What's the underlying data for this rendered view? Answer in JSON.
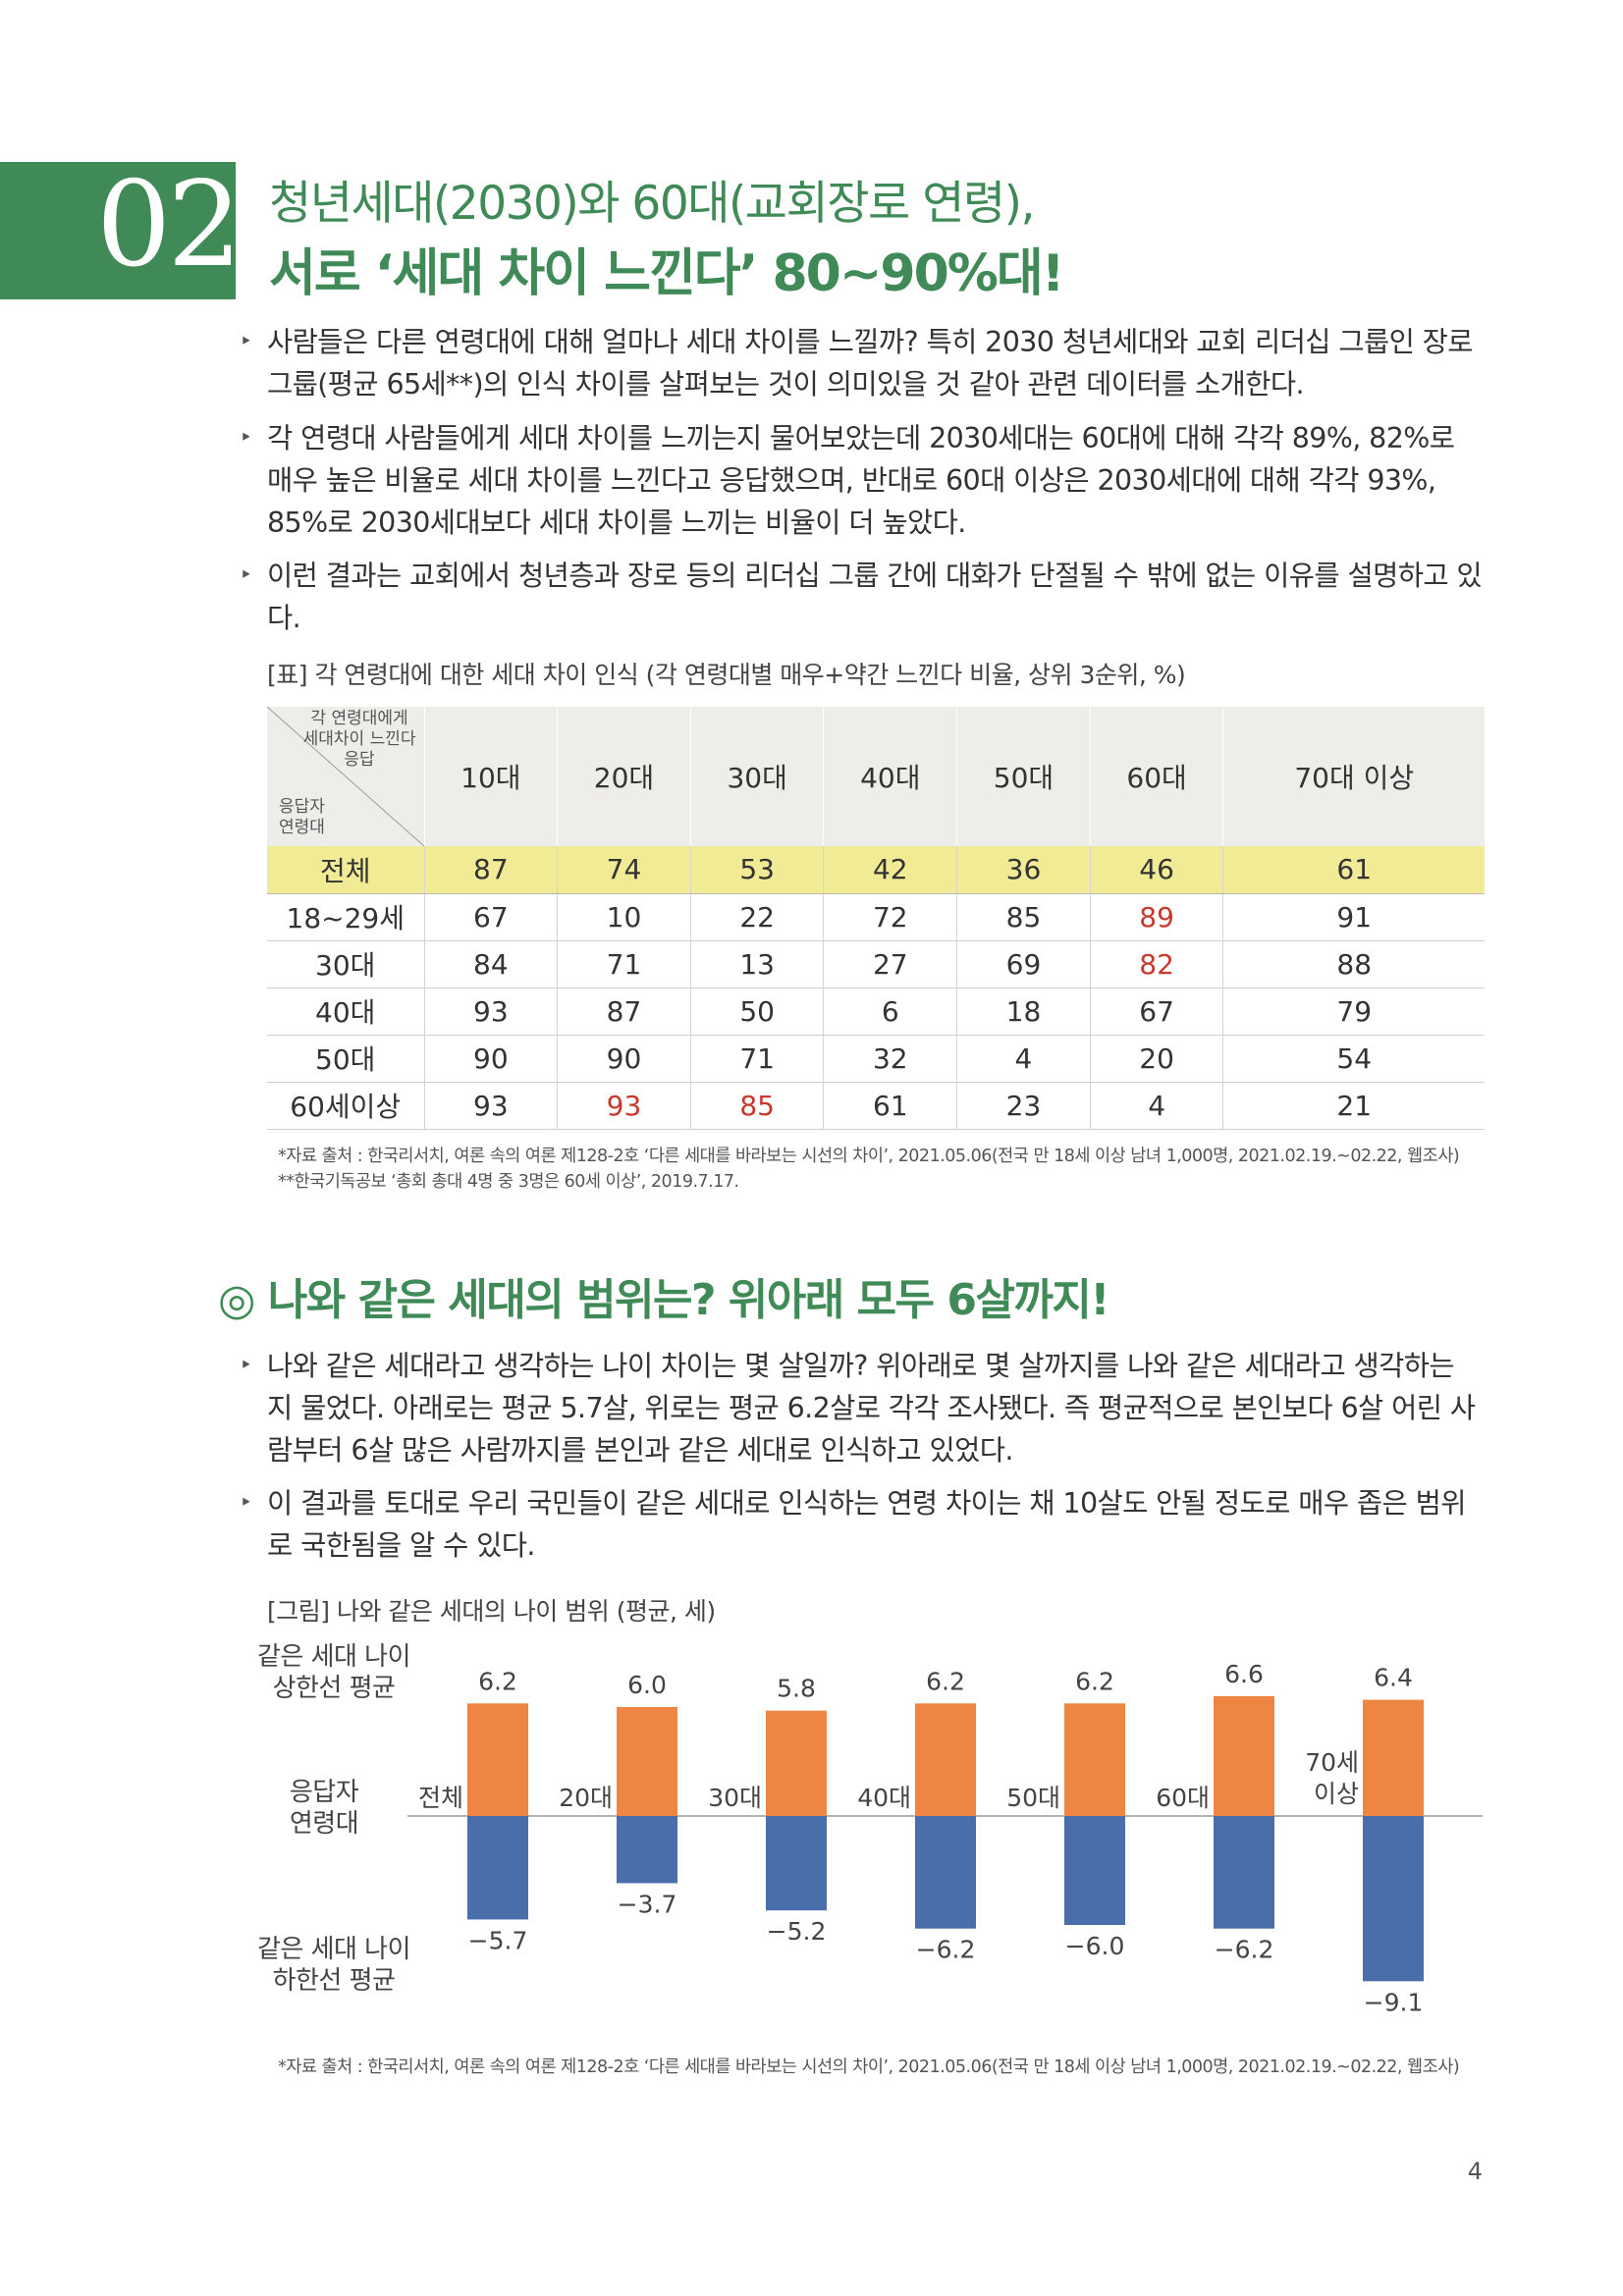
{
  "section": {
    "number": "02",
    "title_line1": "청년세대(2030)와 60대(교회장로 연령),",
    "title_line2": "서로 ‘세대 차이 느낀다’ 80~90%대!"
  },
  "bullets_top": [
    "사람들은 다른 연령대에 대해 얼마나 세대 차이를 느낄까? 특히 2030 청년세대와 교회 리더십 그룹인 장로 그룹(평균 65세**)의 인식 차이를 살펴보는 것이 의미있을 것 같아 관련 데이터를 소개한다.",
    "각 연령대 사람들에게 세대 차이를 느끼는지 물어보았는데 2030세대는 60대에 대해 각각 89%, 82%로 매우 높은 비율로 세대 차이를 느낀다고 응답했으며, 반대로 60대 이상은 2030세대에 대해 각각 93%, 85%로 2030세대보다 세대 차이를 느끼는 비율이 더 높았다.",
    "이런 결과는 교회에서 청년층과 장로 등의 리더십 그룹 간에 대화가 단절될 수 밖에 없는 이유를 설명하고 있다."
  ],
  "table": {
    "caption": "[표] 각 연령대에 대한 세대 차이 인식 (각 연령대별 매우+약간 느낀다 비율, 상위 3순위, %)",
    "corner_top": [
      "각 연령대에게",
      "세대차이 느낀다",
      "응답"
    ],
    "corner_bottom": [
      "응답자",
      "연령대"
    ],
    "columns": [
      "10대",
      "20대",
      "30대",
      "40대",
      "50대",
      "60대",
      "70대 이상"
    ],
    "rows": [
      {
        "label": "전체",
        "values": [
          "87",
          "74",
          "53",
          "42",
          "36",
          "46",
          "61"
        ]
      },
      {
        "label": "18~29세",
        "values": [
          "67",
          "10",
          "22",
          "72",
          "85",
          "89",
          "91"
        ]
      },
      {
        "label": "30대",
        "values": [
          "84",
          "71",
          "13",
          "27",
          "69",
          "82",
          "88"
        ]
      },
      {
        "label": "40대",
        "values": [
          "93",
          "87",
          "50",
          "6",
          "18",
          "67",
          "79"
        ]
      },
      {
        "label": "50대",
        "values": [
          "90",
          "90",
          "71",
          "32",
          "4",
          "20",
          "54"
        ]
      },
      {
        "label": "60세이상",
        "values": [
          "93",
          "93",
          "85",
          "61",
          "23",
          "4",
          "21"
        ]
      }
    ],
    "note1": "*자료 출처 : 한국리서치, 여론 속의 여론 제128-2호 ‘다른 세대를 바라보는 시선의 차이’, 2021.05.06(전국 만 18세 이상 남녀 1,000명, 2021.02.19.~02.22, 웹조사)",
    "note2": "**한국기독공보 ‘총회 총대 4명 중 3명은 60세 이상’, 2019.7.17."
  },
  "subsection": {
    "title": "◎ 나와 같은 세대의 범위는? 위아래 모두 6살까지!",
    "bullets": [
      "나와 같은 세대라고 생각하는 나이 차이는 몇 살일까? 위아래로 몇 살까지를 나와 같은 세대라고 생각하는 지 물었다. 아래로는 평균 5.7살, 위로는 평균 6.2살로 각각 조사됐다. 즉 평균적으로 본인보다 6살 어린 사람부터 6살 많은 사람까지를 본인과 같은 세대로 인식하고 있었다.",
      "이 결과를 토대로 우리 국민들이 같은 세대로 인식하는 연령 차이는 채 10살도 안될 정도로 매우 좁은 범위로 국한됨을 알 수 있다."
    ]
  },
  "chart_data": {
    "type": "bar",
    "caption": "[그림] 나와 같은 세대의 나이 범위 (평균, 세)",
    "categories": [
      "전체",
      "20대",
      "30대",
      "40대",
      "50대",
      "60대",
      "70세 이상"
    ],
    "series": [
      {
        "name": "같은 세대 나이 상한선 평균",
        "values": [
          6.2,
          6.0,
          5.8,
          6.2,
          6.2,
          6.6,
          6.4
        ]
      },
      {
        "name": "같은 세대 나이 하한선 평균",
        "values": [
          -5.7,
          -3.7,
          -5.2,
          -6.2,
          -6.0,
          -6.2,
          -9.1
        ]
      }
    ],
    "value_labels_top": [
      "6.2",
      "6.0",
      "5.8",
      "6.2",
      "6.2",
      "6.6",
      "6.4"
    ],
    "value_labels_bottom": [
      "−5.7",
      "−3.7",
      "−5.2",
      "−6.2",
      "−6.0",
      "−6.2",
      "−9.1"
    ],
    "left_label_top": [
      "같은 세대 나이",
      "상한선 평균"
    ],
    "left_label_mid": [
      "응답자",
      "연령대"
    ],
    "left_label_bottom": [
      "같은 세대 나이",
      "하한선 평균"
    ],
    "colors": {
      "upper": "#ef8543",
      "lower": "#4a6ea9"
    },
    "ylim": [
      -9.1,
      6.6
    ],
    "note": "*자료 출처 : 한국리서치, 여론 속의 여론 제128-2호 ‘다른 세대를 바라보는 시선의 차이’, 2021.05.06(전국 만 18세 이상 남녀 1,000명, 2021.02.19.~02.22, 웹조사)"
  },
  "page_number": "4"
}
